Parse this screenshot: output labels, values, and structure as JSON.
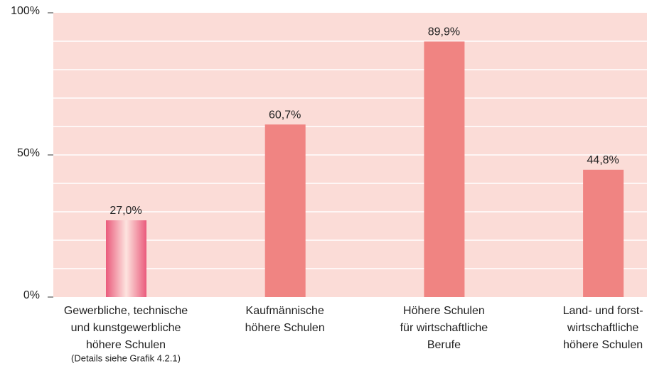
{
  "chart_data": {
    "type": "bar",
    "categories": [
      [
        "Gewerbliche, technische",
        "und kunstgewerbliche",
        "höhere Schulen"
      ],
      [
        "Kaufmännische",
        "höhere Schulen"
      ],
      [
        "Höhere Schulen",
        "für wirtschaftliche",
        "Berufe"
      ],
      [
        "Land- und forst-",
        "wirtschaftliche",
        "höhere Schulen"
      ]
    ],
    "category_note": "(Details siehe Grafik 4.2.1)",
    "values": [
      27.0,
      60.7,
      89.9,
      44.8
    ],
    "value_labels": [
      "27,0%",
      "60,7%",
      "89,9%",
      "44,8%"
    ],
    "color": "#f08482",
    "bar_styles": [
      "gradient",
      "solid",
      "solid",
      "solid"
    ],
    "ylim": [
      0,
      100
    ],
    "yticks": [
      {
        "value": 0,
        "label": "0%"
      },
      {
        "value": 50,
        "label": "50%"
      },
      {
        "value": 100,
        "label": "100%"
      }
    ],
    "grid_lines": [
      10,
      20,
      30,
      40,
      50,
      60,
      70,
      80,
      90
    ],
    "background": "#fbdcd7"
  }
}
